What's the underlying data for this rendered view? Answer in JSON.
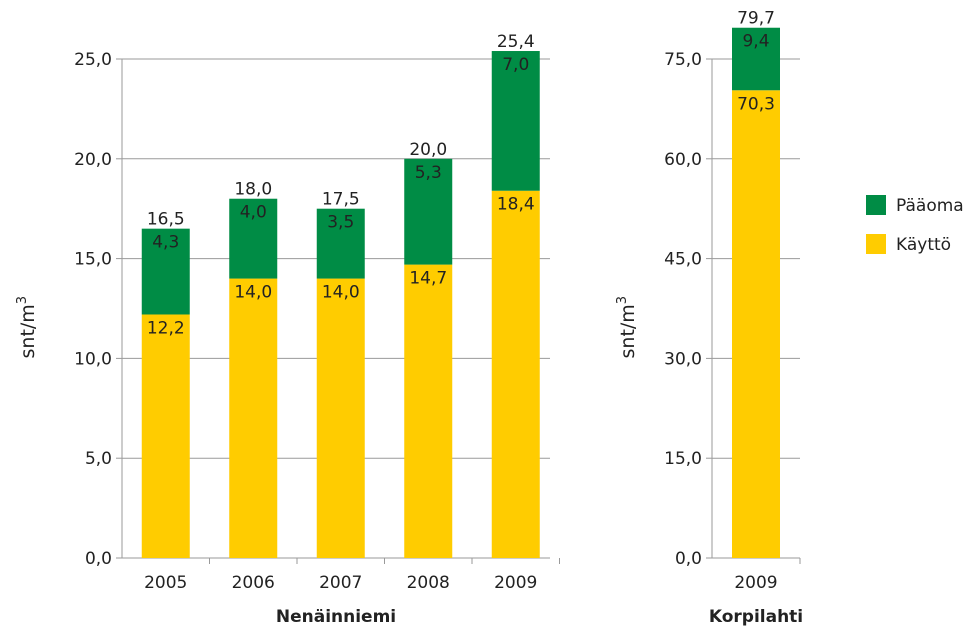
{
  "chart_data": [
    {
      "type": "bar",
      "stacked": true,
      "group_label": "Nenäinniemi",
      "ylabel": "snt/m",
      "ylabel_sup": "3",
      "ylim": [
        0,
        25
      ],
      "yticks": [
        "0,0",
        "5,0",
        "10,0",
        "15,0",
        "20,0",
        "25,0"
      ],
      "categories": [
        "2005",
        "2006",
        "2007",
        "2008",
        "2009"
      ],
      "series": [
        {
          "name": "Käyttö",
          "values": [
            12.2,
            14.0,
            14.0,
            14.7,
            18.4
          ],
          "labels": [
            "12,2",
            "14,0",
            "14,0",
            "14,7",
            "18,4"
          ],
          "color": "#FFCC00"
        },
        {
          "name": "Pääoma",
          "values": [
            4.3,
            4.0,
            3.5,
            5.3,
            7.0
          ],
          "labels": [
            "4,3",
            "4,0",
            "3,5",
            "5,3",
            "7,0"
          ],
          "color": "#008C45"
        }
      ],
      "totals": [
        "16,5",
        "18,0",
        "17,5",
        "20,0",
        "25,4"
      ],
      "grid": true
    },
    {
      "type": "bar",
      "stacked": true,
      "group_label": "Korpilahti",
      "ylabel": "snt/m",
      "ylabel_sup": "3",
      "ylim": [
        0,
        75
      ],
      "yticks": [
        "0,0",
        "15,0",
        "30,0",
        "45,0",
        "60,0",
        "75,0"
      ],
      "categories": [
        "2009"
      ],
      "series": [
        {
          "name": "Käyttö",
          "values": [
            70.3
          ],
          "labels": [
            "70,3"
          ],
          "color": "#FFCC00"
        },
        {
          "name": "Pääoma",
          "values": [
            9.4
          ],
          "labels": [
            "9,4"
          ],
          "color": "#008C45"
        }
      ],
      "totals": [
        "79,7"
      ],
      "grid": true
    }
  ],
  "legend": {
    "placement": "right",
    "items": [
      {
        "name": "Pääoma",
        "color": "#008C45"
      },
      {
        "name": "Käyttö",
        "color": "#FFCC00"
      }
    ]
  }
}
